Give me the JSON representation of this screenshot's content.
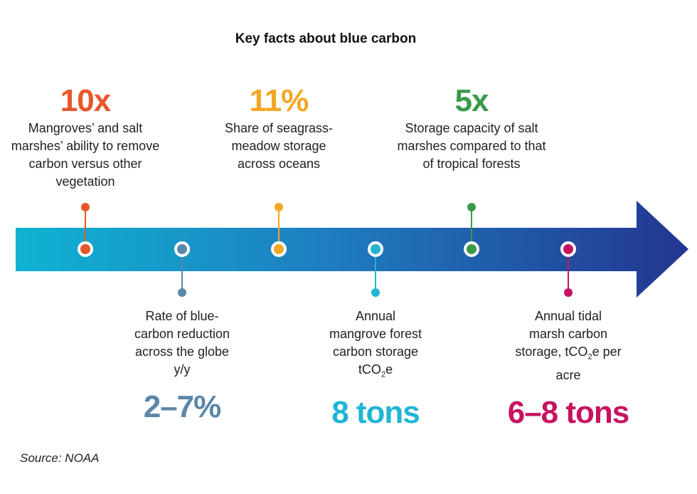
{
  "title": "Key facts about blue carbon",
  "source": "Source: NOAA",
  "colors": {
    "arrow_start": "#0fb3d2",
    "arrow_mid": "#1e7fc0",
    "arrow_end": "#23368f",
    "orange": "#e8562b",
    "gold": "#f5a623",
    "green": "#3a9a4a",
    "slate": "#5a86a8",
    "cyan": "#1fb5d5",
    "magenta": "#c8125f"
  },
  "facts_top": [
    {
      "value": "10x",
      "description": "Mangroves’ and salt marshes’ ability to remove carbon versus other vegetation",
      "color": "#e8562b"
    },
    {
      "value": "11%",
      "description": "Share of seagrass-meadow storage across oceans",
      "color": "#f5a623"
    },
    {
      "value": "5x",
      "description": "Storage capacity of salt marshes compared to that of tropical forests",
      "color": "#3a9a4a"
    }
  ],
  "facts_bottom": [
    {
      "value": "2–7%",
      "description": "Rate of blue-carbon reduction across the globe y/y",
      "color": "#5a86a8"
    },
    {
      "value": "8 tons",
      "description_lines": [
        "Annual",
        "mangrove forest",
        "carbon storage"
      ],
      "unit_prefix": "tCO",
      "unit_sub": "2",
      "unit_suffix": "e",
      "color": "#1fb5d5"
    },
    {
      "value": "6–8 tons",
      "description_lines": [
        "Annual tidal",
        "marsh carbon"
      ],
      "unit_line_prefix": "storage, tCO",
      "unit_sub": "2",
      "unit_line_suffix": "e per",
      "unit_last": "acre",
      "color": "#c8125f"
    }
  ]
}
